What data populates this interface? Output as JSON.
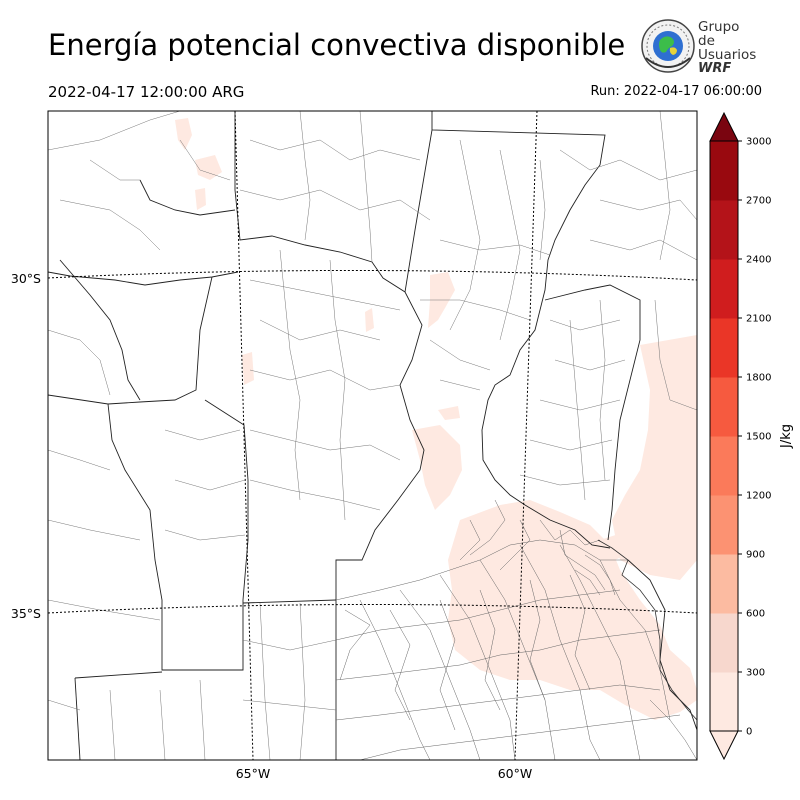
{
  "header": {
    "title": "Energía potencial convectiva disponible",
    "valid_time": "2022-04-17 12:00:00 ARG",
    "run_time": "Run: 2022-04-17 06:00:00"
  },
  "logo": {
    "line1": "Grupo de",
    "line2": "Usuarios",
    "line3": "WRF"
  },
  "map": {
    "lat_labels": [
      "30°S",
      "35°S"
    ],
    "lon_labels": [
      "65°W",
      "60°W"
    ]
  },
  "colorbar": {
    "unit": "J/kg",
    "ticks": [
      "0",
      "300",
      "600",
      "900",
      "1200",
      "1500",
      "1800",
      "2100",
      "2400",
      "2700",
      "3000"
    ],
    "levels": [
      0,
      300,
      600,
      900,
      1200,
      1500,
      1800,
      2100,
      2400,
      2700,
      3000
    ],
    "colors": [
      "#fee9e1",
      "#f7d7cd",
      "#fcbba1",
      "#fc9272",
      "#fb7a5a",
      "#f65a3f",
      "#ea3627",
      "#d01d1e",
      "#b41319",
      "#99090f",
      "#7a0510"
    ],
    "extend": "both"
  }
}
